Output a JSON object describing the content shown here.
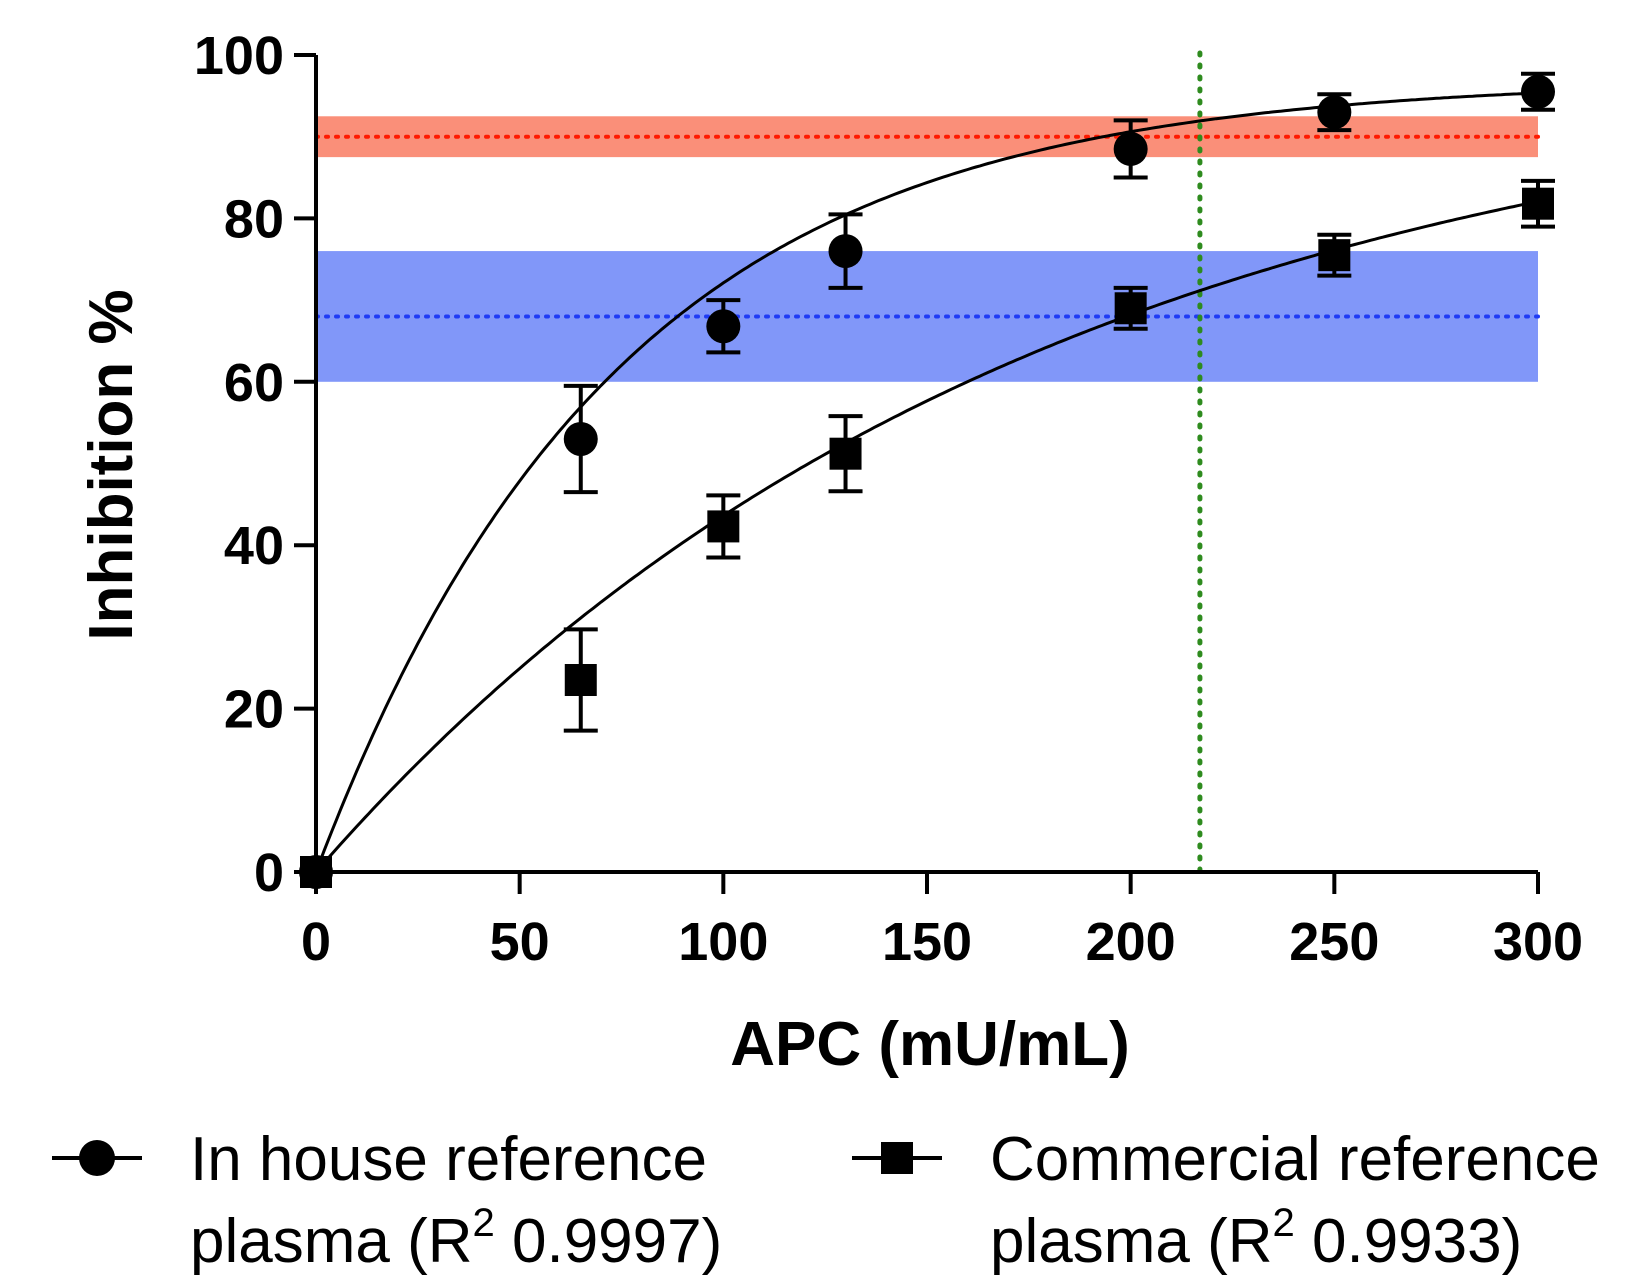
{
  "chart_data": {
    "type": "scatter",
    "xlabel": "APC (mU/mL)",
    "ylabel": "Inhibition %",
    "xlim": [
      0,
      300
    ],
    "ylim": [
      0,
      100
    ],
    "x_ticks": [
      "0",
      "50",
      "100",
      "150",
      "200",
      "250",
      "300"
    ],
    "y_ticks": [
      "0",
      "20",
      "40",
      "60",
      "80",
      "100"
    ],
    "grid": false,
    "legend_position": "bottom",
    "series": [
      {
        "name_line1": "In house reference",
        "name_line2": "plasma (R",
        "r2_sup": "2",
        "r2_value": " 0.9997)",
        "marker": "circle",
        "x": [
          0,
          65,
          100,
          130,
          200,
          250,
          300
        ],
        "y": [
          0,
          53,
          66.8,
          76,
          88.5,
          93,
          95.5
        ],
        "err": [
          0,
          6.5,
          3.2,
          4.5,
          3.5,
          2.2,
          2.2
        ],
        "fit": {
          "model": "one-phase association",
          "ymax": 97,
          "k": 0.0136
        }
      },
      {
        "name_line1": "Commercial reference",
        "name_line2": "plasma (R",
        "r2_sup": "2",
        "r2_value": " 0.9933)",
        "marker": "square",
        "x": [
          0,
          65,
          100,
          130,
          200,
          250,
          300
        ],
        "y": [
          0,
          23.5,
          42.3,
          51.2,
          69,
          75.5,
          81.8
        ],
        "err": [
          0,
          6.2,
          3.8,
          4.6,
          2.5,
          2.5,
          2.8
        ],
        "fit": {
          "model": "one-phase association",
          "ymax": 100,
          "k": 0.00573
        }
      }
    ],
    "reference_bands": [
      {
        "y_center": 90,
        "y_range": [
          87.5,
          92.5
        ],
        "band_color": "#fa8f79",
        "line_color": "#ff1a00"
      },
      {
        "y_center": 68,
        "y_range": [
          60,
          76
        ],
        "band_color": "#8197f9",
        "line_color": "#1f3bf5"
      }
    ],
    "reference_line_x": {
      "x": 217,
      "color": "#2e8b1e"
    }
  }
}
